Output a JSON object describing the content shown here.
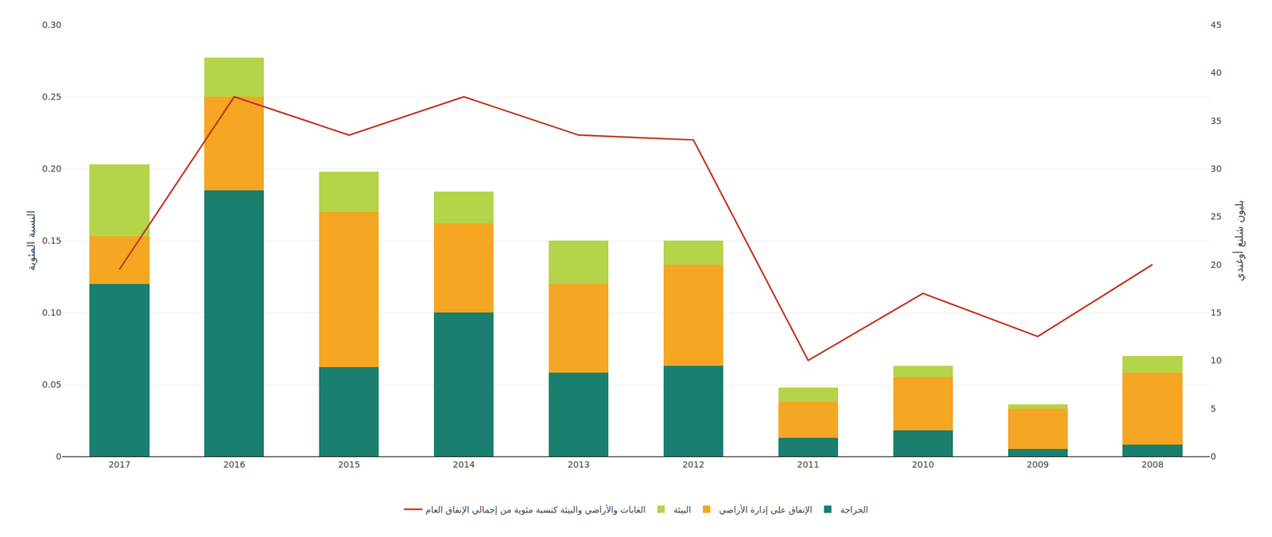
{
  "chart_data": {
    "type": "bar",
    "stacked": true,
    "categories": [
      "2017",
      "2016",
      "2015",
      "2014",
      "2013",
      "2012",
      "2011",
      "2010",
      "2009",
      "2008"
    ],
    "series": [
      {
        "name": "الحراجة",
        "color": "#1a7f6e",
        "values": [
          0.12,
          0.185,
          0.062,
          0.1,
          0.058,
          0.063,
          0.013,
          0.018,
          0.005,
          0.008
        ]
      },
      {
        "name": "الإنفاق على إدارة الأراضي",
        "color": "#f5a623",
        "values": [
          0.033,
          0.065,
          0.108,
          0.062,
          0.062,
          0.07,
          0.025,
          0.037,
          0.028,
          0.05
        ]
      },
      {
        "name": "البيئة",
        "color": "#b5d44a",
        "values": [
          0.05,
          0.027,
          0.028,
          0.022,
          0.03,
          0.017,
          0.01,
          0.008,
          0.003,
          0.012
        ]
      },
      {
        "name": "الغابات والأراضي والبيئة كنسبة مئوية من إجمالي الإنفاق العام",
        "type": "line",
        "axis": "y2",
        "color": "#c0321b",
        "values": [
          19.5,
          37.5,
          33.5,
          37.5,
          33.5,
          33.0,
          10.0,
          17.0,
          12.5,
          20.0
        ]
      }
    ],
    "ylabel": "النسبة المئوية",
    "y2label": "بليون شلنغ أوغندي",
    "ylim": [
      0,
      0.3
    ],
    "yticks": [
      0,
      0.05,
      {
        "value": 0.1,
        "label": "0.10"
      },
      0.15,
      {
        "value": 0.2,
        "label": "0.20"
      },
      0.25,
      {
        "value": 0.3,
        "label": "0.30"
      }
    ],
    "y2lim": [
      0,
      45
    ],
    "y2ticks": [
      0,
      5,
      10,
      15,
      20,
      25,
      30,
      35,
      40,
      45
    ],
    "grid": true,
    "legend": "bottom"
  }
}
